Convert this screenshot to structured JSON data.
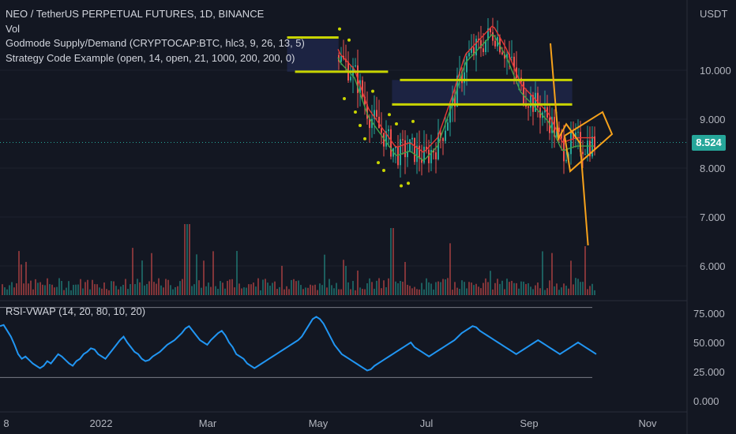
{
  "legend": {
    "symbol_line": "NEO / TetherUS PERPETUAL FUTURES, 1D, BINANCE",
    "vol": "Vol",
    "supply_demand": "Godmode Supply/Demand (CRYPTOCAP:BTC, hlc3, 9, 26, 13, 5)",
    "strategy": "Strategy Code Example (open, 14, open, 21, 1000, 200, 200, 0)"
  },
  "price_axis": {
    "currency": "USDT",
    "ticks": [
      "10.000",
      "9.000",
      "8.000",
      "7.000",
      "6.000"
    ],
    "last_price": "8.524"
  },
  "rsi_pane": {
    "label": "RSI-VWAP (14, 20, 80, 10, 20)",
    "ticks": [
      "75.000",
      "50.000",
      "25.000",
      "0.000"
    ]
  },
  "time_axis": {
    "ticks": [
      "8",
      "2022",
      "Mar",
      "May",
      "Jul",
      "Sep",
      "Nov"
    ]
  },
  "colors": {
    "background": "#131722",
    "up": "#26a69a",
    "down": "#ef5350",
    "rsi_line": "#2196f3",
    "supply_demand_level": "#c8d400",
    "pattern": "#f7a21b"
  },
  "chart_data": [
    {
      "type": "candlestick",
      "title": "NEO / TetherUS PERPETUAL FUTURES, 1D, BINANCE",
      "y_range": [
        5.5,
        11.4
      ],
      "last_price": 8.524,
      "x_range": [
        "2021-12-08",
        "2022-11-20"
      ],
      "supply_demand_levels": [
        {
          "price": 10.67,
          "from": "2022-05-02",
          "to": "2022-05-28"
        },
        {
          "price": 9.97,
          "from": "2022-05-06",
          "to": "2022-06-22"
        },
        {
          "price": 9.8,
          "from": "2022-06-28",
          "to": "2022-09-23"
        },
        {
          "price": 9.3,
          "from": "2022-06-24",
          "to": "2022-09-23"
        }
      ],
      "pattern_projection": [
        {
          "date": "2022-09-12",
          "price": 10.55
        },
        {
          "date": "2022-09-16",
          "price": 8.6
        },
        {
          "date": "2022-09-20",
          "price": 8.9
        },
        {
          "date": "2022-09-27",
          "price": 8.51
        },
        {
          "date": "2022-10-01",
          "price": 6.42
        }
      ]
    },
    {
      "type": "line",
      "title": "RSI-VWAP (14, 20, 80, 10, 20)",
      "ylim": [
        0,
        80
      ],
      "bands": [
        80,
        20
      ],
      "series": [
        {
          "values": [
            64,
            65,
            60,
            55,
            48,
            40,
            36,
            38,
            35,
            32,
            30,
            28,
            30,
            34,
            32,
            36,
            40,
            38,
            35,
            32,
            30,
            34,
            36,
            40,
            42,
            45,
            44,
            40,
            38,
            36,
            40,
            44,
            48,
            52,
            55,
            50,
            46,
            42,
            40,
            36,
            34,
            35,
            38,
            40,
            42,
            45,
            48,
            50,
            52,
            55,
            58,
            62,
            64,
            60,
            56,
            52,
            50,
            48,
            52,
            55,
            58,
            60,
            56,
            50,
            46,
            40,
            38,
            36,
            32,
            30,
            28,
            30,
            32,
            34,
            36,
            38,
            40,
            42,
            44,
            46,
            48,
            50,
            52,
            55,
            60,
            65,
            70,
            72,
            70,
            66,
            60,
            54,
            48,
            44,
            40,
            38,
            36,
            34,
            32,
            30,
            28,
            26,
            27,
            30,
            32,
            34,
            36,
            38,
            40,
            42,
            44,
            46,
            48,
            50,
            46,
            44,
            42,
            40,
            38,
            40,
            42,
            44,
            46,
            48,
            50,
            52,
            55,
            58,
            60,
            62,
            64,
            63,
            60,
            58,
            56,
            54,
            52,
            50,
            48,
            46,
            44,
            42,
            40,
            42,
            44,
            46,
            48,
            50,
            52,
            50,
            48,
            46,
            44,
            42,
            40,
            42,
            44,
            46,
            48,
            50,
            48,
            46,
            44,
            42,
            40
          ]
        }
      ]
    }
  ]
}
